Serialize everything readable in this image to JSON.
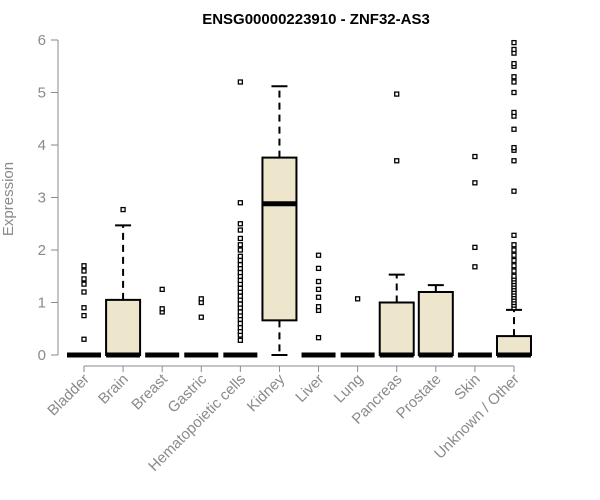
{
  "chart_data": {
    "type": "box",
    "title": "ENSG00000223910 - ZNF32-AS3",
    "xlabel": "",
    "ylabel": "Expression",
    "ylim": [
      0,
      6
    ],
    "yticks": [
      "0",
      "1",
      "2",
      "3",
      "4",
      "5",
      "6"
    ],
    "box_fill": "#ede6cd",
    "box_stroke": "#000000",
    "categories": [
      "Bladder",
      "Brain",
      "Breast",
      "Gastric",
      "Hematopoietic cells",
      "Kidney",
      "Liver",
      "Lung",
      "Pancreas",
      "Prostate",
      "Skin",
      "Unknown / Other"
    ],
    "boxes": [
      {
        "q1": 0,
        "median": 0,
        "q3": 0,
        "whisker_low": 0,
        "whisker_high": 0,
        "outliers": [
          0.3,
          0.75,
          0.9,
          1.2,
          1.35,
          1.45,
          1.6,
          1.7
        ]
      },
      {
        "q1": 0,
        "median": 0,
        "q3": 1.05,
        "whisker_low": 0,
        "whisker_high": 2.47,
        "outliers": [
          2.77
        ]
      },
      {
        "q1": 0,
        "median": 0,
        "q3": 0,
        "whisker_low": 0,
        "whisker_high": 0,
        "outliers": [
          0.82,
          0.88,
          1.25
        ]
      },
      {
        "q1": 0,
        "median": 0,
        "q3": 0,
        "whisker_low": 0,
        "whisker_high": 0,
        "outliers": [
          0.72,
          1.0,
          1.07
        ]
      },
      {
        "q1": 0,
        "median": 0,
        "q3": 0,
        "whisker_low": 0,
        "whisker_high": 0,
        "outliers": [
          0.28,
          0.38,
          0.45,
          0.52,
          0.6,
          0.68,
          0.75,
          0.82,
          0.9,
          0.97,
          1.05,
          1.12,
          1.2,
          1.27,
          1.35,
          1.42,
          1.5,
          1.57,
          1.65,
          1.72,
          1.8,
          1.88,
          2.0,
          2.1,
          2.22,
          2.38,
          2.5,
          2.9,
          5.2
        ]
      },
      {
        "q1": 0.66,
        "median": 2.88,
        "q3": 3.76,
        "whisker_low": 0,
        "whisker_high": 5.12,
        "outliers": []
      },
      {
        "q1": 0,
        "median": 0,
        "q3": 0,
        "whisker_low": 0,
        "whisker_high": 0,
        "outliers": [
          0.33,
          0.85,
          0.92,
          1.1,
          1.25,
          1.4,
          1.65,
          1.9
        ]
      },
      {
        "q1": 0,
        "median": 0,
        "q3": 0,
        "whisker_low": 0,
        "whisker_high": 0,
        "outliers": [
          1.07
        ]
      },
      {
        "q1": 0,
        "median": 0,
        "q3": 1.0,
        "whisker_low": 0,
        "whisker_high": 1.53,
        "outliers": [
          3.7,
          4.97
        ]
      },
      {
        "q1": 0,
        "median": 0,
        "q3": 1.2,
        "whisker_low": 0,
        "whisker_high": 1.33,
        "outliers": []
      },
      {
        "q1": 0,
        "median": 0,
        "q3": 0,
        "whisker_low": 0,
        "whisker_high": 0,
        "outliers": [
          1.68,
          2.05,
          3.28,
          3.78
        ]
      },
      {
        "q1": 0,
        "median": 0,
        "q3": 0.36,
        "whisker_low": 0,
        "whisker_high": 0.86,
        "outliers": [
          0.9,
          0.95,
          1.0,
          1.05,
          1.1,
          1.15,
          1.2,
          1.25,
          1.3,
          1.35,
          1.4,
          1.45,
          1.5,
          1.6,
          1.7,
          1.8,
          1.9,
          2.0,
          2.1,
          2.28,
          3.12,
          3.7,
          3.9,
          3.95,
          4.3,
          4.55,
          4.62,
          5.0,
          5.2,
          5.3,
          5.5,
          5.55,
          5.75,
          5.82,
          5.95
        ]
      }
    ]
  }
}
